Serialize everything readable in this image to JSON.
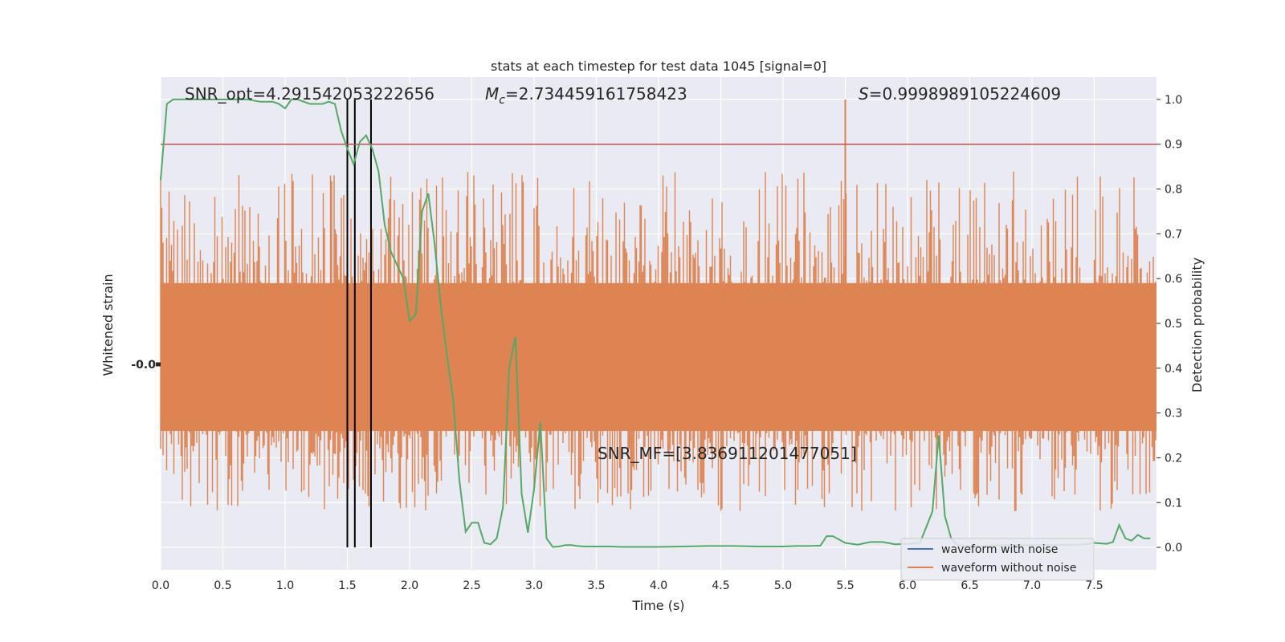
{
  "chart_data": {
    "type": "line",
    "title": "stats at each timestep for test data 1045 [signal=0]",
    "xlabel": "Time (s)",
    "ylabel_left": "Whitened strain",
    "ylabel_right": "Detection probability",
    "xlim": [
      0.0,
      8.0
    ],
    "ylim_right": [
      -0.05,
      1.05
    ],
    "xticks": [
      "0.0",
      "0.5",
      "1.0",
      "1.5",
      "2.0",
      "2.5",
      "3.0",
      "3.5",
      "4.0",
      "4.5",
      "5.0",
      "5.5",
      "6.0",
      "6.5",
      "7.0",
      "7.5"
    ],
    "yticks_right": [
      "0.0",
      "0.1",
      "0.2",
      "0.3",
      "0.4",
      "0.5",
      "0.6",
      "0.7",
      "0.8",
      "0.9",
      "1.0"
    ],
    "left_tick_label": "-0.0",
    "grid": true,
    "legend_position": "lower-right",
    "series": [
      {
        "name": "waveform with noise",
        "color": "#4c72b0"
      },
      {
        "name": "waveform without noise",
        "color": "#dd8452"
      }
    ],
    "detection_probability": {
      "color": "#55a868",
      "x": [
        0.0,
        0.05,
        0.1,
        0.15,
        0.2,
        0.3,
        0.4,
        0.5,
        0.6,
        0.7,
        0.8,
        0.9,
        0.95,
        1.0,
        1.05,
        1.1,
        1.2,
        1.3,
        1.35,
        1.4,
        1.45,
        1.5,
        1.55,
        1.6,
        1.65,
        1.7,
        1.75,
        1.8,
        1.85,
        1.9,
        1.95,
        2.0,
        2.05,
        2.1,
        2.15,
        2.2,
        2.25,
        2.3,
        2.35,
        2.4,
        2.45,
        2.5,
        2.55,
        2.6,
        2.65,
        2.7,
        2.75,
        2.8,
        2.85,
        2.9,
        2.95,
        3.0,
        3.05,
        3.1,
        3.15,
        3.2,
        3.25,
        3.3,
        3.35,
        3.4,
        3.45,
        3.5,
        3.6,
        3.7,
        3.8,
        4.0,
        4.2,
        4.4,
        4.6,
        4.8,
        5.0,
        5.1,
        5.2,
        5.3,
        5.35,
        5.4,
        5.5,
        5.6,
        5.7,
        5.8,
        5.9,
        6.0,
        6.1,
        6.2,
        6.25,
        6.3,
        6.35,
        6.4,
        6.45,
        6.5,
        6.6,
        6.8,
        7.0,
        7.2,
        7.4,
        7.5,
        7.6,
        7.65,
        7.7,
        7.75,
        7.8,
        7.85,
        7.9,
        7.95
      ],
      "y": [
        0.82,
        0.99,
        1.0,
        1.0,
        1.0,
        1.0,
        1.0,
        1.0,
        1.0,
        1.0,
        0.995,
        0.995,
        0.99,
        0.98,
        1.0,
        1.0,
        0.99,
        0.99,
        0.995,
        0.99,
        0.93,
        0.89,
        0.855,
        0.905,
        0.92,
        0.89,
        0.84,
        0.72,
        0.66,
        0.63,
        0.6,
        0.505,
        0.52,
        0.75,
        0.79,
        0.68,
        0.54,
        0.43,
        0.33,
        0.15,
        0.035,
        0.055,
        0.055,
        0.01,
        0.007,
        0.02,
        0.09,
        0.4,
        0.47,
        0.12,
        0.033,
        0.13,
        0.28,
        0.02,
        0.001,
        0.002,
        0.005,
        0.005,
        0.003,
        0.002,
        0.002,
        0.002,
        0.002,
        0.001,
        0.001,
        0.001,
        0.002,
        0.003,
        0.003,
        0.002,
        0.002,
        0.003,
        0.003,
        0.004,
        0.025,
        0.025,
        0.01,
        0.006,
        0.012,
        0.012,
        0.007,
        0.008,
        0.01,
        0.08,
        0.25,
        0.07,
        0.02,
        0.005,
        0.003,
        0.003,
        0.003,
        0.005,
        0.005,
        0.005,
        0.006,
        0.01,
        0.008,
        0.012,
        0.05,
        0.02,
        0.015,
        0.028,
        0.02,
        0.02
      ]
    },
    "threshold": {
      "value": 0.9,
      "color": "#c44e52"
    },
    "vertical_markers": [
      1.5,
      1.56,
      1.69
    ],
    "annotations": {
      "snr_opt": "SNR_opt=4.291542053222656",
      "mc_symbol": "M",
      "mc_subscript": "c",
      "mc_value": "=2.734459161758423",
      "s_symbol": "S",
      "s_value": "=0.9998989105224609",
      "snr_mf": "SNR_MF=[3.836911201477051]"
    }
  }
}
